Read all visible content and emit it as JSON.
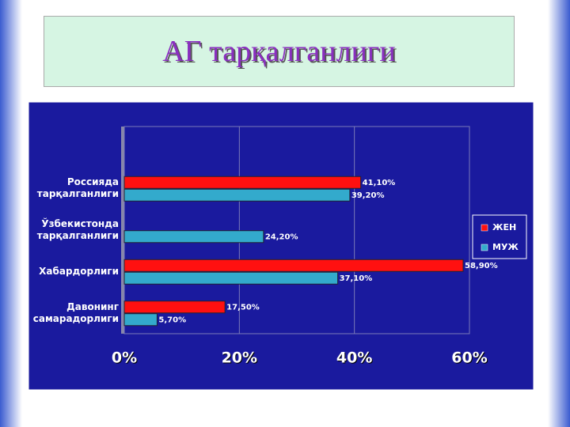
{
  "chart_data": {
    "type": "bar",
    "orientation": "horizontal",
    "title": "АГ тарқалганлиги",
    "categories": [
      "Россияда тарқалганлиги",
      "Ўзбекистонда тарқалганлиги",
      "Хабардорлиги",
      "Давонинг самарадорлиги"
    ],
    "series": [
      {
        "name": "ЖЕН",
        "color": "#ff1010",
        "values": [
          41.1,
          null,
          58.9,
          17.5
        ],
        "value_labels": [
          "41,10%",
          null,
          "58,90%",
          "17,50%"
        ]
      },
      {
        "name": "МУЖ",
        "color": "#33aacc",
        "values": [
          39.2,
          24.2,
          37.1,
          5.7
        ],
        "value_labels": [
          "39,20%",
          "24,20%",
          "37,10%",
          "5,70%"
        ]
      }
    ],
    "xlim": [
      0,
      60
    ],
    "xticks": [
      {
        "value": 0,
        "label": "0%"
      },
      {
        "value": 20,
        "label": "20%"
      },
      {
        "value": 40,
        "label": "40%"
      },
      {
        "value": 60,
        "label": "60%"
      }
    ],
    "grid": true,
    "legend": "right"
  }
}
